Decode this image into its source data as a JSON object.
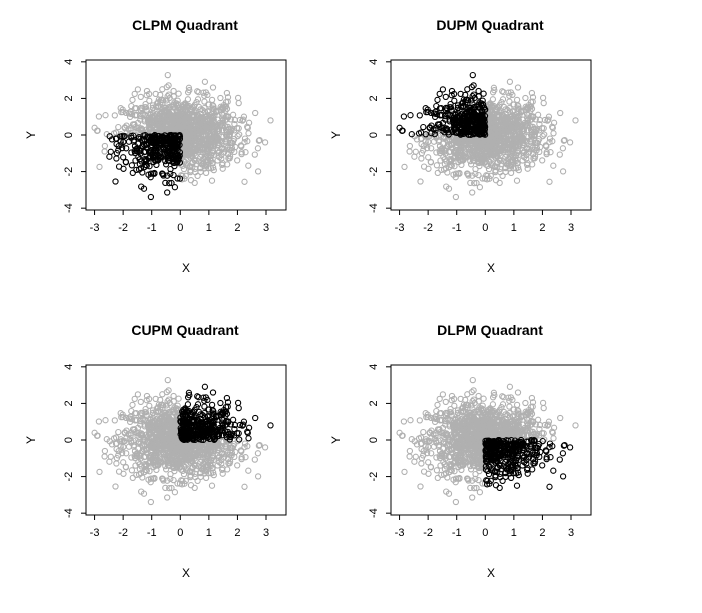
{
  "chart_data": [
    {
      "type": "scatter",
      "title": "CLPM Quadrant",
      "xlabel": "X",
      "ylabel": "Y",
      "xlim": [
        -3.3,
        3.7
      ],
      "ylim": [
        -4.1,
        4.1
      ],
      "x_ticks": [
        "-3",
        "-2",
        "-1",
        "0",
        "1",
        "2",
        "3"
      ],
      "y_ticks": [
        "-4",
        "-2",
        "0",
        "2",
        "4"
      ],
      "series": [
        {
          "role": "background",
          "color": "#b0b0b0",
          "region": {
            "x": [
              -3.2,
              3.5
            ],
            "y": [
              -3.8,
              3.8
            ]
          }
        },
        {
          "role": "highlight",
          "color": "#000000",
          "region": {
            "x": [
              -2.6,
              0
            ],
            "y": [
              -3.8,
              0
            ]
          }
        }
      ]
    },
    {
      "type": "scatter",
      "title": "DUPM Quadrant",
      "xlabel": "X",
      "ylabel": "Y",
      "xlim": [
        -3.3,
        3.7
      ],
      "ylim": [
        -4.1,
        4.1
      ],
      "x_ticks": [
        "-3",
        "-2",
        "-1",
        "0",
        "1",
        "2",
        "3"
      ],
      "y_ticks": [
        "-4",
        "-2",
        "0",
        "2",
        "4"
      ],
      "series": [
        {
          "role": "background",
          "color": "#b0b0b0",
          "region": {
            "x": [
              -3.2,
              3.5
            ],
            "y": [
              -3.8,
              3.8
            ]
          }
        },
        {
          "role": "highlight",
          "color": "#000000",
          "region": {
            "x": [
              -3.0,
              0
            ],
            "y": [
              0,
              3.8
            ]
          }
        }
      ]
    },
    {
      "type": "scatter",
      "title": "CUPM Quadrant",
      "xlabel": "X",
      "ylabel": "Y",
      "xlim": [
        -3.3,
        3.7
      ],
      "ylim": [
        -4.1,
        4.1
      ],
      "x_ticks": [
        "-3",
        "-2",
        "-1",
        "0",
        "1",
        "2",
        "3"
      ],
      "y_ticks": [
        "-4",
        "-2",
        "0",
        "2",
        "4"
      ],
      "series": [
        {
          "role": "background",
          "color": "#b0b0b0",
          "region": {
            "x": [
              -3.2,
              3.5
            ],
            "y": [
              -3.8,
              3.8
            ]
          }
        },
        {
          "role": "highlight",
          "color": "#000000",
          "region": {
            "x": [
              0,
              3.5
            ],
            "y": [
              0,
              3.6
            ]
          }
        }
      ]
    },
    {
      "type": "scatter",
      "title": "DLPM Quadrant",
      "xlabel": "X",
      "ylabel": "Y",
      "xlim": [
        -3.3,
        3.7
      ],
      "ylim": [
        -4.1,
        4.1
      ],
      "x_ticks": [
        "-3",
        "-2",
        "-1",
        "0",
        "1",
        "2",
        "3"
      ],
      "y_ticks": [
        "-4",
        "-2",
        "0",
        "2",
        "4"
      ],
      "series": [
        {
          "role": "background",
          "color": "#b0b0b0",
          "region": {
            "x": [
              -3.2,
              3.5
            ],
            "y": [
              -3.8,
              3.8
            ]
          }
        },
        {
          "role": "highlight",
          "color": "#000000",
          "region": {
            "x": [
              0,
              3.0
            ],
            "y": [
              -3.5,
              0
            ]
          }
        }
      ]
    }
  ]
}
